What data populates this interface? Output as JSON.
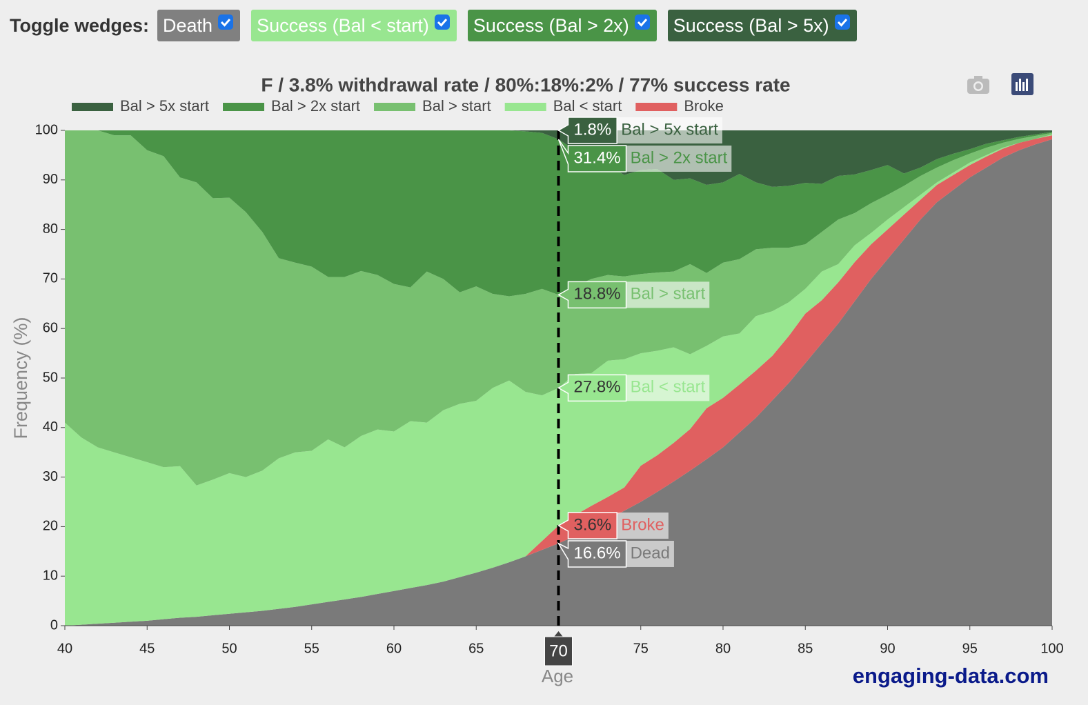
{
  "controls": {
    "label": "Toggle wedges:",
    "buttons": [
      {
        "label": "Death",
        "color": "#808080",
        "text_color": "#ffffff"
      },
      {
        "label": "Success (Bal < start)",
        "color": "#98e690",
        "text_color": "#ffffff"
      },
      {
        "label": "Success (Bal > 2x)",
        "color": "#4a9447",
        "text_color": "#ffffff"
      },
      {
        "label": "Success (Bal > 5x)",
        "color": "#3a6140",
        "text_color": "#ffffff"
      }
    ]
  },
  "footer": "engaging-data.com",
  "chart_data": {
    "type": "stacked_area",
    "title": "F / 3.8% withdrawal rate / 80%:18%:2% / 77% success rate",
    "x_label": "Age",
    "y_label": "Frequency (%)",
    "x": [
      40,
      41,
      42,
      43,
      44,
      45,
      46,
      47,
      48,
      49,
      50,
      51,
      52,
      53,
      54,
      55,
      56,
      57,
      58,
      59,
      60,
      61,
      62,
      63,
      64,
      65,
      66,
      67,
      68,
      69,
      70,
      71,
      72,
      73,
      74,
      75,
      76,
      77,
      78,
      79,
      80,
      81,
      82,
      83,
      84,
      85,
      86,
      87,
      88,
      89,
      90,
      91,
      92,
      93,
      94,
      95,
      96,
      97,
      98,
      99,
      100
    ],
    "xlim": [
      40,
      100
    ],
    "xticks": [
      40,
      45,
      50,
      55,
      60,
      65,
      75,
      80,
      85,
      90,
      95,
      100
    ],
    "ylim": [
      0,
      100
    ],
    "yticks": [
      0,
      10,
      20,
      30,
      40,
      50,
      60,
      70,
      80,
      90,
      100
    ],
    "grid": false,
    "hover_x": 70,
    "series": [
      {
        "name": "Dead",
        "color": "#7a7a7a",
        "legend": false,
        "hover_label": "16.6%",
        "label_color": "#ffffff",
        "values": [
          0,
          0.2,
          0.4,
          0.6,
          0.8,
          1.0,
          1.3,
          1.6,
          1.8,
          2.1,
          2.4,
          2.7,
          3.0,
          3.4,
          3.8,
          4.3,
          4.8,
          5.3,
          5.8,
          6.4,
          7.0,
          7.6,
          8.2,
          8.9,
          9.8,
          10.7,
          11.7,
          12.8,
          14.0,
          15.3,
          16.6,
          18.1,
          19.7,
          21.4,
          23.2,
          25.0,
          27.0,
          29.1,
          31.3,
          33.6,
          36,
          39,
          42,
          45.5,
          49,
          53,
          57,
          61,
          65.5,
          70,
          74,
          78,
          82,
          85.5,
          88,
          90.5,
          92.5,
          94.5,
          96,
          97.2,
          98.2
        ]
      },
      {
        "name": "Broke",
        "color": "#e06060",
        "hover_label": "3.6%",
        "label_color": "#333333",
        "values": [
          0,
          0,
          0,
          0,
          0,
          0,
          0,
          0,
          0,
          0,
          0,
          0,
          0,
          0,
          0,
          0,
          0,
          0,
          0,
          0,
          0,
          0,
          0,
          0,
          0,
          0,
          0,
          0,
          0,
          1.8,
          3.6,
          4.2,
          4.5,
          4.6,
          4.7,
          7.3,
          7.4,
          7.8,
          8.4,
          10.3,
          10,
          9.7,
          9.5,
          9,
          9.5,
          10,
          8.7,
          8.3,
          7.9,
          7,
          6,
          5,
          4,
          3.5,
          3,
          2.5,
          2.2,
          1.8,
          1.5,
          1.1,
          0.8
        ]
      },
      {
        "name": "Bal < start",
        "color": "#98e690",
        "hover_label": "27.8%",
        "label_color": "#333333",
        "values": [
          41,
          37.8,
          35.6,
          34.4,
          33.2,
          32,
          30.7,
          30.6,
          26.5,
          27.4,
          28.4,
          27.3,
          28.3,
          30.4,
          31.2,
          31,
          32.8,
          30.7,
          32.5,
          33.2,
          32.2,
          33.7,
          32.8,
          34.6,
          35,
          34.7,
          36.3,
          36.7,
          33.2,
          29.4,
          27.8,
          28.5,
          26.8,
          27.5,
          25.9,
          22.7,
          21.1,
          19.3,
          15.1,
          12.6,
          12.4,
          10.3,
          11,
          9,
          6.8,
          5,
          5.8,
          3.7,
          3.4,
          2.3,
          2,
          1.5,
          1,
          0.5,
          0.5,
          0.5,
          0.3,
          0.2,
          0,
          0,
          0.2
        ]
      },
      {
        "name": "Bal > start",
        "color": "#78c070",
        "hover_label": "18.8%",
        "label_color": "#333333",
        "values": [
          59,
          62,
          64,
          64,
          65,
          63,
          62.8,
          58.3,
          61.2,
          56.8,
          55.6,
          53.5,
          48.2,
          40.4,
          38.3,
          37.2,
          32.8,
          34.4,
          33.3,
          31.2,
          29.8,
          27,
          30.5,
          26.5,
          22.5,
          23.1,
          19,
          17,
          19.8,
          21.5,
          18.8,
          17.7,
          19,
          17.3,
          16.7,
          16,
          15.8,
          15.3,
          18.2,
          14.7,
          14.9,
          15,
          13.5,
          12.8,
          11,
          9,
          8,
          9,
          6.5,
          6,
          5,
          4.3,
          3.8,
          3,
          2.5,
          1.8,
          1.5,
          1,
          0.8,
          0.6,
          0.3
        ]
      },
      {
        "name": "Bal > 2x start",
        "color": "#4a9447",
        "hover_label": "31.4%",
        "label_color": "#ffffff",
        "values": [
          0,
          0,
          0,
          1,
          1,
          4,
          5.2,
          9.5,
          10.5,
          13.7,
          13.6,
          16.5,
          20.5,
          25.8,
          26.7,
          27.5,
          29.6,
          29.6,
          28.4,
          29.2,
          31,
          31.7,
          28.5,
          30,
          32.7,
          31.5,
          33,
          33.5,
          32.8,
          31.5,
          31.4,
          27.5,
          24,
          22.2,
          20.5,
          21,
          20.9,
          18.5,
          17.3,
          17.8,
          16.2,
          17.2,
          13.5,
          12.3,
          12.5,
          12.4,
          9.7,
          8.8,
          7.8,
          6.7,
          6,
          2.5,
          1.7,
          1.7,
          1.3,
          0.9,
          0.8,
          0.5,
          0.4,
          0.3,
          0.2
        ]
      },
      {
        "name": "Bal > 5x start",
        "color": "#3a6140",
        "hover_label": "1.8%",
        "label_color": "#ffffff",
        "values": [
          0,
          0,
          0,
          0,
          0,
          0,
          0,
          0,
          0,
          0,
          0,
          0,
          0,
          0,
          0,
          0,
          0,
          0,
          0,
          0,
          0,
          0,
          0,
          0,
          0,
          0,
          0,
          0,
          0.2,
          0.5,
          1.8,
          4,
          6,
          7,
          9,
          8,
          7.8,
          10,
          9.7,
          11,
          10.5,
          8.8,
          10.5,
          11.4,
          11.2,
          10.6,
          10.8,
          9.2,
          8.9,
          8,
          7,
          8.7,
          7.5,
          5.8,
          4.7,
          3.8,
          2.7,
          2,
          1.3,
          0.8,
          0.3
        ]
      }
    ]
  }
}
